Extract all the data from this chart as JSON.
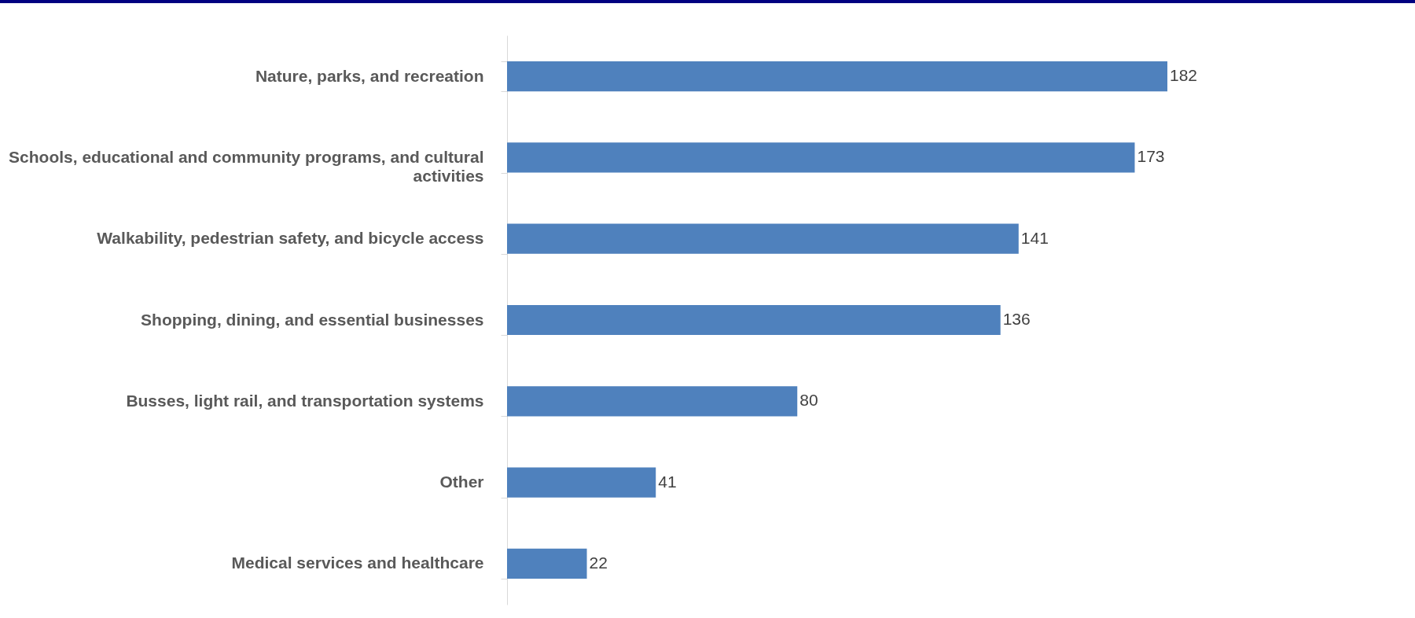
{
  "chart_data": {
    "type": "bar",
    "orientation": "horizontal",
    "data_labels": true,
    "color": "#4f81bd",
    "categories": [
      "Nature, parks, and recreation",
      "Schools, educational and community programs, and cultural activities",
      "Walkability, pedestrian safety, and bicycle access",
      "Shopping, dining, and essential businesses",
      "Busses, light rail, and transportation systems",
      "Other",
      "Medical services and healthcare"
    ],
    "values": [
      182,
      173,
      141,
      136,
      80,
      41,
      22
    ]
  }
}
